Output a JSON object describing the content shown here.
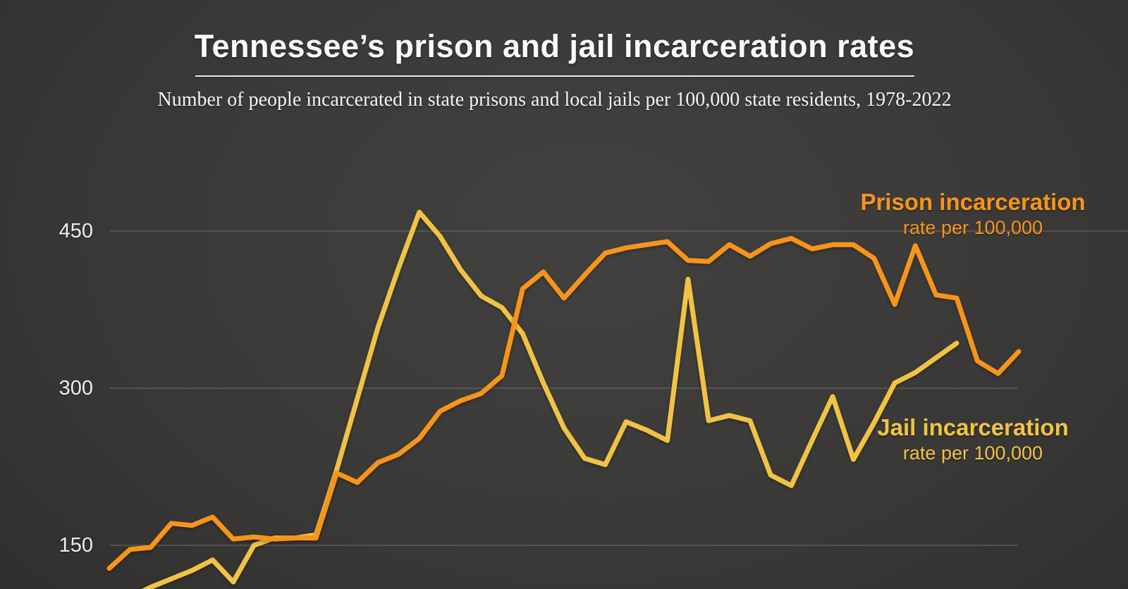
{
  "header": {
    "title": "Tennessee’s prison and jail incarceration rates",
    "subtitle": "Number of people incarcerated in state prisons and local jails per 100,000 state residents, 1978-2022"
  },
  "axis": {
    "yticks": [
      "450",
      "300",
      "150"
    ]
  },
  "legend": {
    "prison": {
      "label": "Prison incarceration",
      "sublabel": "rate per 100,000",
      "color": "#F7941A"
    },
    "jail": {
      "label": "Jail incarceration",
      "sublabel": "rate per 100,000",
      "color": "#F0C344"
    }
  },
  "colors": {
    "background": "#3a3938",
    "title_text": "#fbfaf8",
    "gridline": "#82807d",
    "prison_line": "#F7941A",
    "jail_line": "#F0C344"
  },
  "chart_data": {
    "type": "line",
    "title": "Tennessee’s prison and jail incarceration rates",
    "subtitle": "Number of people incarcerated in state prisons and local jails per 100,000 state residents, 1978-2022",
    "xlabel": "",
    "ylabel": "rate per 100,000",
    "x_start_year": 1978,
    "x_end_year": 2022,
    "yticks": [
      450,
      300,
      150
    ],
    "ylim_visible": [
      107,
      470
    ],
    "grid": "horizontal-only",
    "legend_position": "right-inline",
    "series": [
      {
        "name": "Prison incarceration",
        "color": "#F7941A",
        "start_year": 1978,
        "end_year": 2022,
        "values": [
          128,
          146,
          148,
          171,
          169,
          177,
          156,
          158,
          156,
          157,
          157,
          219,
          210,
          229,
          237,
          252,
          278,
          288,
          295,
          312,
          395,
          411,
          386,
          408,
          429,
          434,
          437,
          440,
          422,
          421,
          437,
          426,
          438,
          443,
          433,
          437,
          437,
          424,
          380,
          436,
          389,
          386,
          326,
          314,
          335
        ]
      },
      {
        "name": "Jail incarceration",
        "color": "#F0C344",
        "start_year": 1978,
        "end_year": 2019,
        "values": [
          90,
          100,
          110,
          118,
          126,
          136,
          115,
          150,
          157,
          157,
          160,
          222,
          290,
          358,
          415,
          468,
          445,
          413,
          388,
          377,
          352,
          305,
          262,
          233,
          227,
          268,
          260,
          250,
          404,
          269,
          274,
          269,
          217,
          207,
          250,
          292,
          232,
          267,
          305,
          315,
          329,
          343
        ]
      }
    ]
  }
}
